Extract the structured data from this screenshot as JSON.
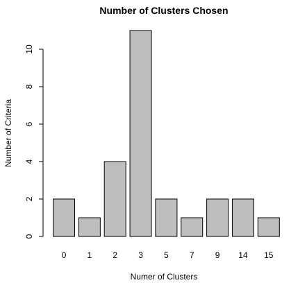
{
  "chart_data": {
    "type": "bar",
    "title": "Number of Clusters Chosen",
    "xlabel": "Numer of Clusters",
    "ylabel": "Number of Criteria",
    "categories": [
      "0",
      "1",
      "2",
      "3",
      "5",
      "7",
      "9",
      "14",
      "15"
    ],
    "values": [
      2,
      1,
      4,
      11,
      2,
      1,
      2,
      2,
      1
    ],
    "ylim": [
      0,
      11
    ],
    "yticks": [
      0,
      2,
      4,
      6,
      8,
      10
    ],
    "grid": false,
    "legend": "none",
    "colors": {
      "bar_fill": "#bebebe",
      "bar_stroke": "#000000"
    }
  }
}
